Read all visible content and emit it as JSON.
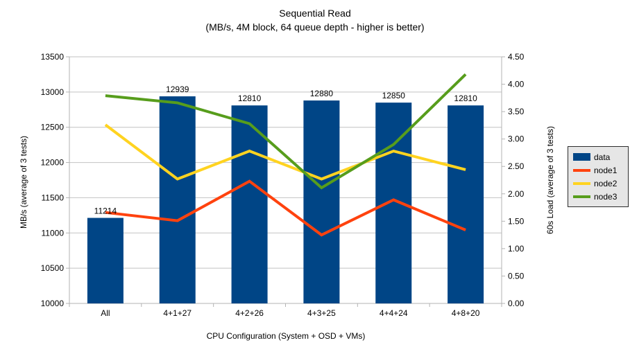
{
  "title": {
    "main": "Sequential Read",
    "sub": "(MB/s, 4M block, 64 queue depth - higher is better)"
  },
  "colors": {
    "bar": "#004586",
    "node1": "#FF420E",
    "node2": "#FFD320",
    "node3": "#579D1C",
    "grid": "#c2c2c2",
    "axis": "#b3b3b3",
    "text": "#000000",
    "legend_bg": "#e6e6e6",
    "legend_border": "#2b2b2b"
  },
  "chart_data": {
    "type": "bar+line",
    "categories": [
      "All",
      "4+1+27",
      "4+2+26",
      "4+3+25",
      "4+4+24",
      "4+8+20"
    ],
    "bar_series": {
      "name": "data",
      "axis": "left",
      "values": [
        11214,
        12939,
        12810,
        12880,
        12850,
        12810
      ],
      "data_labels": [
        "11214",
        "12939",
        "12810",
        "12880",
        "12850",
        "12810"
      ],
      "color": "#004586"
    },
    "line_series": [
      {
        "name": "node1",
        "axis": "right",
        "color": "#FF420E",
        "values": [
          1.66,
          1.51,
          2.23,
          1.25,
          1.89,
          1.34
        ]
      },
      {
        "name": "node2",
        "axis": "right",
        "color": "#FFD320",
        "values": [
          3.26,
          2.27,
          2.78,
          2.27,
          2.78,
          2.44
        ]
      },
      {
        "name": "node3",
        "axis": "right",
        "color": "#579D1C",
        "values": [
          3.79,
          3.66,
          3.28,
          2.11,
          2.9,
          4.18
        ]
      }
    ],
    "left_axis": {
      "label": "MB/s (average of 3 tests)",
      "min": 10000,
      "max": 13500,
      "step": 500,
      "tick_labels": [
        "10000",
        "10500",
        "11000",
        "11500",
        "12000",
        "12500",
        "13000",
        "13500"
      ]
    },
    "right_axis": {
      "label": "60s Load (average of 3 tests)",
      "min": 0,
      "max": 4.5,
      "step": 0.5,
      "tick_labels": [
        "0.00",
        "0.50",
        "1.00",
        "1.50",
        "2.00",
        "2.50",
        "3.00",
        "3.50",
        "4.00",
        "4.50"
      ]
    },
    "x_axis": {
      "label": "CPU Configuration (System + OSD + VMs)"
    },
    "grid": "horizontal",
    "legend": {
      "position": "right",
      "entries": [
        {
          "label": "data",
          "swatch": "bar",
          "color": "#004586"
        },
        {
          "label": "node1",
          "swatch": "line",
          "color": "#FF420E"
        },
        {
          "label": "node2",
          "swatch": "line",
          "color": "#FFD320"
        },
        {
          "label": "node3",
          "swatch": "line",
          "color": "#579D1C"
        }
      ]
    }
  }
}
